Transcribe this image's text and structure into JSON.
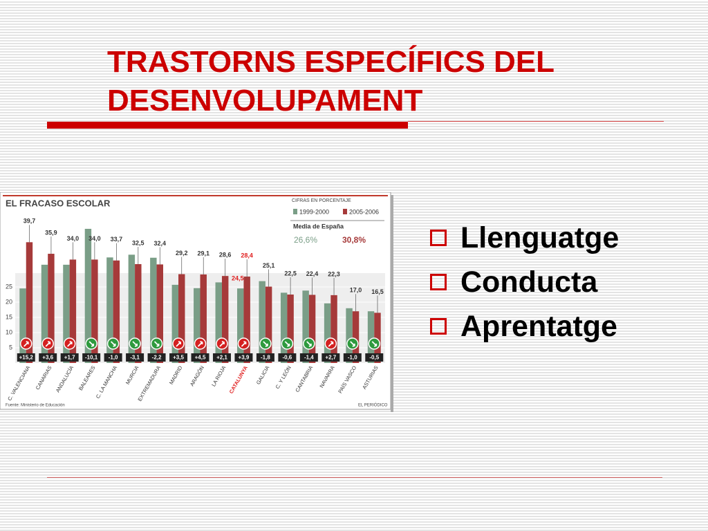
{
  "title": [
    "TRASTORNS ESPECÍFICS DEL",
    "DESENVOLUPAMENT"
  ],
  "bullets": [
    "Llenguatge",
    "Conducta",
    "Aprentatge"
  ],
  "chart_data": {
    "type": "bar",
    "title": "EL FRACASO ESCOLAR",
    "legend_title": "CIFRAS EN PORCENTAJE",
    "average_title": "Media de España",
    "average_values": [
      26.6,
      30.8
    ],
    "average_labels": [
      "26,6%",
      "30,8%"
    ],
    "source": "Fuente: Ministerio de Educación",
    "credit": "EL PERIÓDICO",
    "categories": [
      "C. VALENCIANA",
      "CANARIAS",
      "ANDALUCÍA",
      "BALEARES",
      "C. LA MANCHA",
      "MURCIA",
      "EXTREMADURA",
      "MADRID",
      "ARAGÓN",
      "LA RIOJA",
      "CATALUNYA",
      "GALICIA",
      "C. Y LEÓN",
      "CANTABRIA",
      "NAVARRA",
      "PAÍS VASCO",
      "ASTURIAS"
    ],
    "series": [
      {
        "name": "1999-2000",
        "color": "#7a9e87",
        "values": [
          24.5,
          32.3,
          32.3,
          44.1,
          34.7,
          35.6,
          34.6,
          25.7,
          24.6,
          26.5,
          24.5,
          26.9,
          23.1,
          23.8,
          19.6,
          18.0,
          17.0
        ],
        "value_labels": [
          null,
          null,
          null,
          null,
          null,
          null,
          null,
          null,
          null,
          null,
          "24,5",
          null,
          null,
          null,
          null,
          null,
          null
        ]
      },
      {
        "name": "2005-2006",
        "color": "#a63a3a",
        "values": [
          39.7,
          35.9,
          34.0,
          34.0,
          33.7,
          32.5,
          32.4,
          29.2,
          29.1,
          28.6,
          28.4,
          25.1,
          22.5,
          22.4,
          22.3,
          17.0,
          16.5
        ],
        "value_labels": [
          "39,7",
          "35,9",
          "34,0",
          "34,0",
          "33,7",
          "32,5",
          "32,4",
          "29,2",
          "29,1",
          "28,6",
          "28,4",
          "25,1",
          "22,5",
          "22,4",
          "22,3",
          "17,0",
          "16,5"
        ]
      }
    ],
    "changes": [
      15.2,
      3.6,
      1.7,
      -10.1,
      -1.0,
      -3.1,
      -2.2,
      3.5,
      4.5,
      2.1,
      3.9,
      -1.8,
      -0.6,
      -1.4,
      2.7,
      -1.0,
      -0.5
    ],
    "change_labels": [
      "+15,2",
      "+3,6",
      "+1,7",
      "-10,1",
      "-1,0",
      "-3,1",
      "-2,2",
      "+3,5",
      "+4,5",
      "+2,1",
      "+3,9",
      "-1,8",
      "-0,6",
      "-1,4",
      "+2,7",
      "-1,0",
      "-0,5"
    ],
    "increase_color": "#d42020",
    "decrease_color": "#2e9a3e",
    "highlight": 10,
    "highlight_color": "#e02020",
    "ylim": [
      0,
      50
    ],
    "yticks": [
      5,
      10,
      15,
      20,
      25
    ],
    "grid": true
  }
}
